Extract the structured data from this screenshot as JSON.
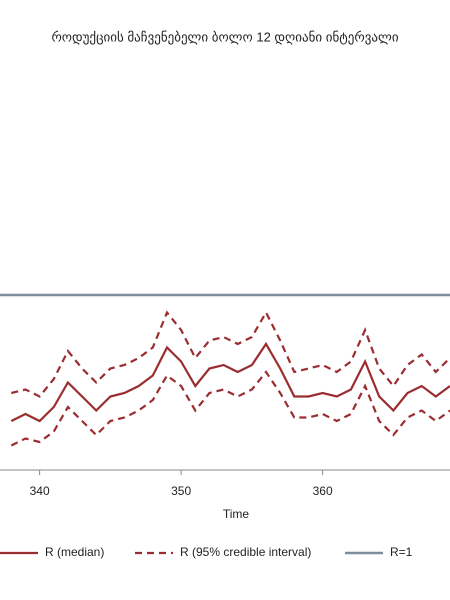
{
  "chart_data": {
    "type": "line",
    "title": "როდუქციის მაჩვენებელი ბოლო 12 დღიანი ინტერვალი",
    "x_label": "Time",
    "x": [
      338,
      339,
      340,
      341,
      342,
      343,
      344,
      345,
      346,
      347,
      348,
      349,
      350,
      351,
      352,
      353,
      354,
      355,
      356,
      357,
      358,
      359,
      360,
      361,
      362,
      363,
      364,
      365,
      366,
      367,
      368,
      369
    ],
    "series": [
      {
        "name": "R (median)",
        "color": "#9b2d30",
        "dash": false,
        "values": [
          0.64,
          0.66,
          0.64,
          0.68,
          0.75,
          0.71,
          0.67,
          0.71,
          0.72,
          0.74,
          0.77,
          0.85,
          0.81,
          0.74,
          0.79,
          0.8,
          0.78,
          0.8,
          0.86,
          0.79,
          0.71,
          0.71,
          0.72,
          0.71,
          0.73,
          0.81,
          0.71,
          0.67,
          0.72,
          0.74,
          0.71,
          0.74
        ]
      },
      {
        "name": "R (95% credible interval)",
        "color": "#9b2d30",
        "dash": true,
        "values": [
          0.72,
          0.73,
          0.71,
          0.76,
          0.84,
          0.79,
          0.75,
          0.79,
          0.8,
          0.82,
          0.85,
          0.95,
          0.9,
          0.82,
          0.87,
          0.88,
          0.86,
          0.88,
          0.95,
          0.87,
          0.78,
          0.79,
          0.8,
          0.78,
          0.81,
          0.9,
          0.79,
          0.74,
          0.8,
          0.83,
          0.78,
          0.82
        ]
      },
      {
        "name": "R (95% credible interval)",
        "color": "#9b2d30",
        "dash": true,
        "legend": false,
        "values": [
          0.57,
          0.59,
          0.58,
          0.61,
          0.68,
          0.64,
          0.6,
          0.64,
          0.65,
          0.67,
          0.7,
          0.77,
          0.74,
          0.67,
          0.72,
          0.73,
          0.71,
          0.73,
          0.78,
          0.72,
          0.65,
          0.65,
          0.66,
          0.64,
          0.66,
          0.74,
          0.64,
          0.6,
          0.65,
          0.67,
          0.64,
          0.67
        ]
      }
    ],
    "reference_line": {
      "name": "R=1",
      "value": 1,
      "color": "#7f8c9a"
    },
    "xlim": [
      337.2,
      369
    ],
    "xticks": [
      340,
      350,
      360
    ],
    "ylim": [
      0.5,
      1.7
    ]
  }
}
